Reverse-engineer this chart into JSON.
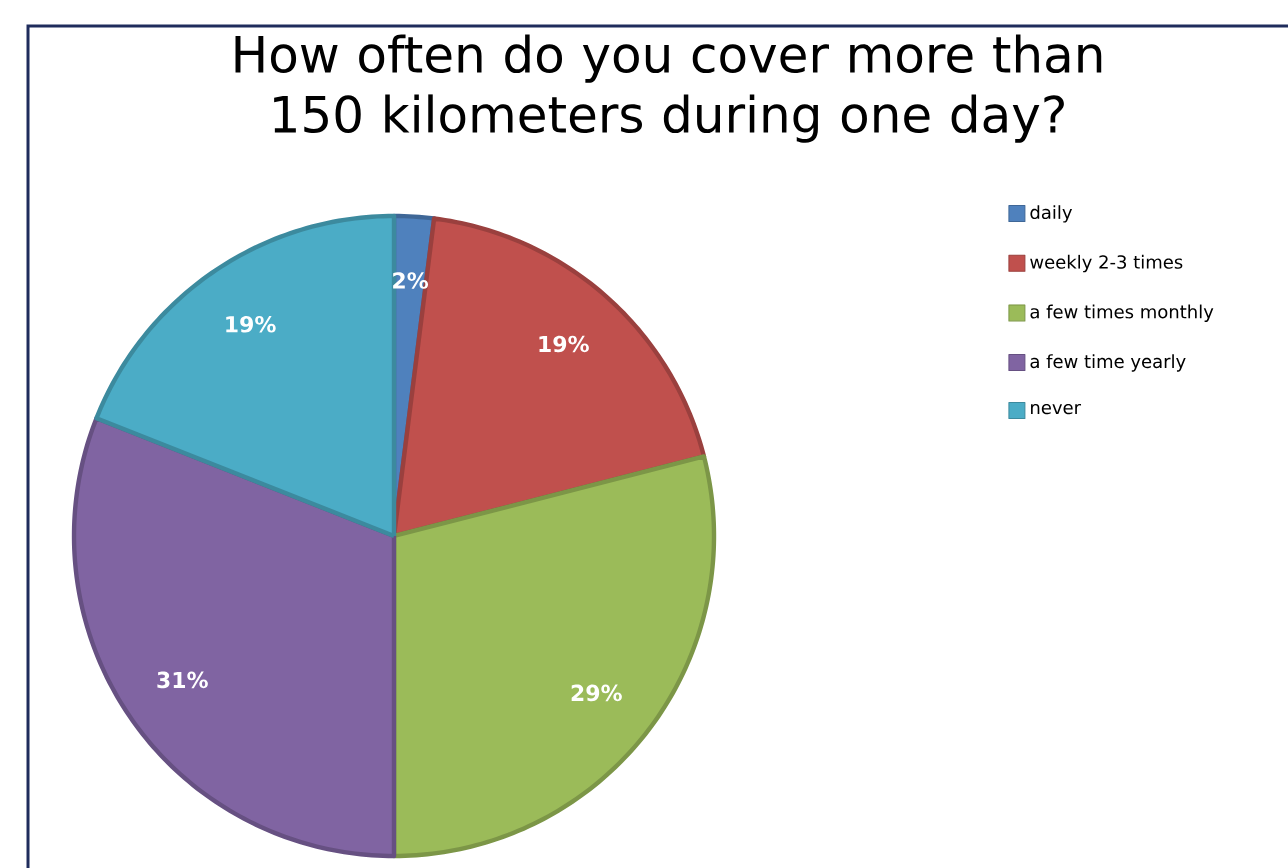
{
  "chart_data": {
    "type": "pie",
    "title": "How often do you cover more than 150 kilometers during one day?",
    "categories": [
      "daily",
      "weekly 2-3 times",
      "a few times monthly",
      "a few time yearly",
      "never"
    ],
    "values": [
      2,
      19,
      29,
      31,
      19
    ],
    "colors": [
      "#4f81bd",
      "#c0504d",
      "#9bbb59",
      "#8064a2",
      "#4bacc6"
    ],
    "value_labels": [
      "2%",
      "19%",
      "29%",
      "31%",
      "19%"
    ],
    "legend": "right"
  }
}
